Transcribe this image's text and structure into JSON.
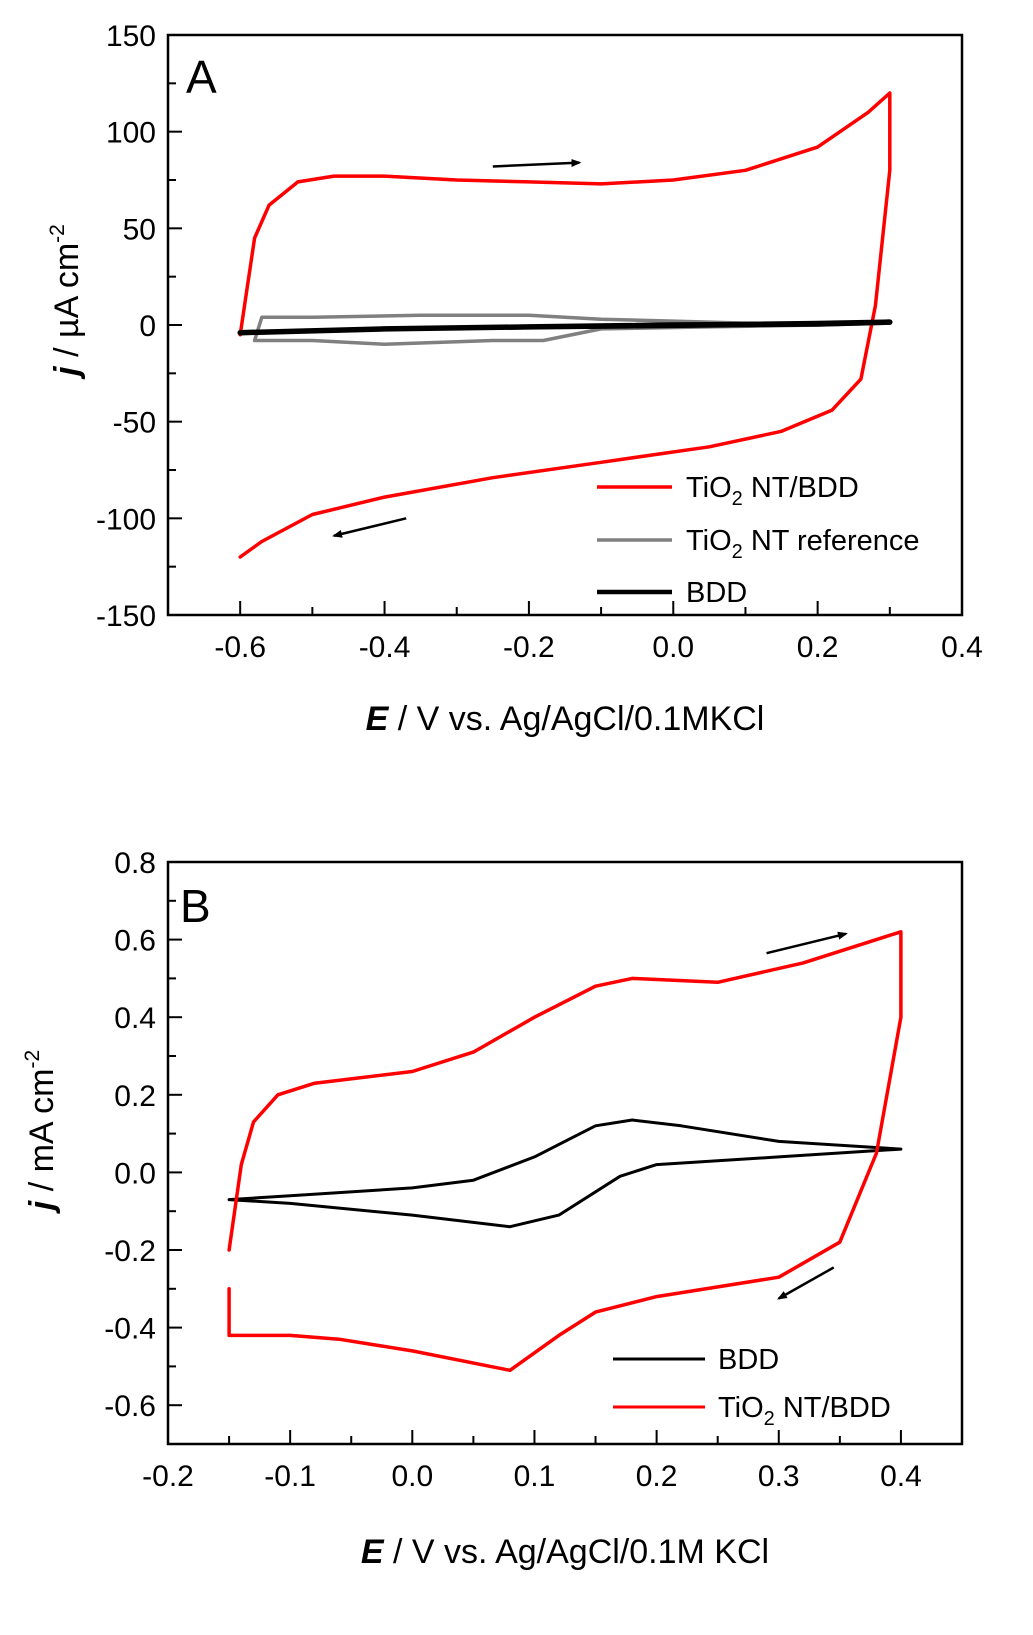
{
  "chart_data": [
    {
      "type": "line",
      "panel_label": "A",
      "xlabel_italic": "E",
      "xlabel_rest": " / V vs. Ag/AgCl/0.1MKCl",
      "ylabel_italic": "j",
      "ylabel_rest": " / µA cm",
      "ylabel_sup": "-2",
      "xlim": [
        -0.7,
        0.4
      ],
      "ylim": [
        -150,
        150
      ],
      "xticks": [
        "-0.6",
        "-0.4",
        "-0.2",
        "0.0",
        "0.2",
        "0.4"
      ],
      "yticks": [
        "150",
        "100",
        "50",
        "0",
        "-50",
        "-100",
        "-150"
      ],
      "legend_position": "bottom-right",
      "series": [
        {
          "name_main": "TiO",
          "name_sub": "2",
          "name_rest": " NT/BDD",
          "color": "#ff0000",
          "x": [
            -0.6,
            -0.59,
            -0.58,
            -0.56,
            -0.52,
            -0.47,
            -0.4,
            -0.3,
            -0.2,
            -0.1,
            0.0,
            0.1,
            0.2,
            0.27,
            0.3,
            0.3,
            0.28,
            0.26,
            0.22,
            0.15,
            0.05,
            -0.1,
            -0.25,
            -0.4,
            -0.5,
            -0.57,
            -0.6
          ],
          "y": [
            -5,
            20,
            45,
            62,
            74,
            77,
            77,
            75,
            74,
            73,
            75,
            80,
            92,
            110,
            120,
            80,
            10,
            -28,
            -44,
            -55,
            -63,
            -71,
            -79,
            -89,
            -98,
            -112,
            -120
          ]
        },
        {
          "name_main": "TiO",
          "name_sub": "2",
          "name_rest": " NT reference",
          "color": "#808080",
          "x": [
            -0.58,
            -0.57,
            -0.5,
            -0.35,
            -0.2,
            -0.1,
            0.0,
            0.1,
            0.2,
            0.3,
            0.2,
            0.05,
            -0.1,
            -0.18,
            -0.25,
            -0.4,
            -0.5,
            -0.58
          ],
          "y": [
            -8,
            4,
            4,
            5,
            5,
            3,
            2,
            1,
            1,
            1,
            0,
            -1,
            -2,
            -8,
            -8,
            -10,
            -8,
            -8
          ]
        },
        {
          "name_main": "BDD",
          "name_sub": "",
          "name_rest": "",
          "color": "#000000",
          "x": [
            -0.6,
            -0.4,
            -0.2,
            0.0,
            0.2,
            0.3,
            0.2,
            0.0,
            -0.2,
            -0.4,
            -0.6
          ],
          "y": [
            -4,
            -2,
            -1,
            0,
            0.5,
            1.5,
            0.8,
            -0.2,
            -1,
            -2,
            -4
          ]
        }
      ],
      "arrows": [
        {
          "from": [
            -0.25,
            82
          ],
          "to": [
            -0.13,
            84
          ]
        },
        {
          "from": [
            -0.37,
            -100
          ],
          "to": [
            -0.47,
            -109
          ]
        }
      ]
    },
    {
      "type": "line",
      "panel_label": "B",
      "xlabel_italic": "E",
      "xlabel_rest": " / V vs. Ag/AgCl/0.1M KCl",
      "ylabel_italic": "j",
      "ylabel_rest": " / mA cm",
      "ylabel_sup": "-2",
      "xlim": [
        -0.2,
        0.45
      ],
      "ylim": [
        -0.7,
        0.8
      ],
      "xticks": [
        "-0.2",
        "-0.1",
        "0.0",
        "0.1",
        "0.2",
        "0.3",
        "0.4"
      ],
      "yticks": [
        "0.8",
        "0.6",
        "0.4",
        "0.2",
        "0.0",
        "-0.2",
        "-0.4",
        "-0.6"
      ],
      "legend_position": "bottom-right",
      "series": [
        {
          "name_main": "BDD",
          "name_sub": "",
          "name_rest": "",
          "color": "#000000",
          "x": [
            -0.15,
            -0.1,
            0.0,
            0.05,
            0.1,
            0.15,
            0.18,
            0.22,
            0.3,
            0.4,
            0.3,
            0.2,
            0.17,
            0.12,
            0.08,
            0.0,
            -0.1,
            -0.15
          ],
          "y": [
            -0.07,
            -0.06,
            -0.04,
            -0.02,
            0.04,
            0.12,
            0.135,
            0.12,
            0.08,
            0.06,
            0.04,
            0.02,
            -0.01,
            -0.11,
            -0.14,
            -0.11,
            -0.08,
            -0.07
          ]
        },
        {
          "name_main": "TiO",
          "name_sub": "2",
          "name_rest": " NT/BDD",
          "color": "#ff0000",
          "x": [
            -0.15,
            -0.14,
            -0.13,
            -0.11,
            -0.08,
            0.0,
            0.05,
            0.1,
            0.15,
            0.18,
            0.25,
            0.32,
            0.4,
            0.4,
            0.38,
            0.35,
            0.3,
            0.2,
            0.15,
            0.12,
            0.08,
            0.0,
            -0.06,
            -0.1,
            -0.15,
            -0.15
          ],
          "y": [
            -0.2,
            0.02,
            0.13,
            0.2,
            0.23,
            0.26,
            0.31,
            0.4,
            0.48,
            0.5,
            0.49,
            0.54,
            0.62,
            0.4,
            0.05,
            -0.18,
            -0.27,
            -0.32,
            -0.36,
            -0.42,
            -0.51,
            -0.46,
            -0.43,
            -0.42,
            -0.42,
            -0.3
          ]
        }
      ],
      "arrows": [
        {
          "from": [
            0.29,
            0.565
          ],
          "to": [
            0.355,
            0.615
          ]
        },
        {
          "from": [
            0.345,
            -0.245
          ],
          "to": [
            0.3,
            -0.325
          ]
        }
      ]
    }
  ]
}
